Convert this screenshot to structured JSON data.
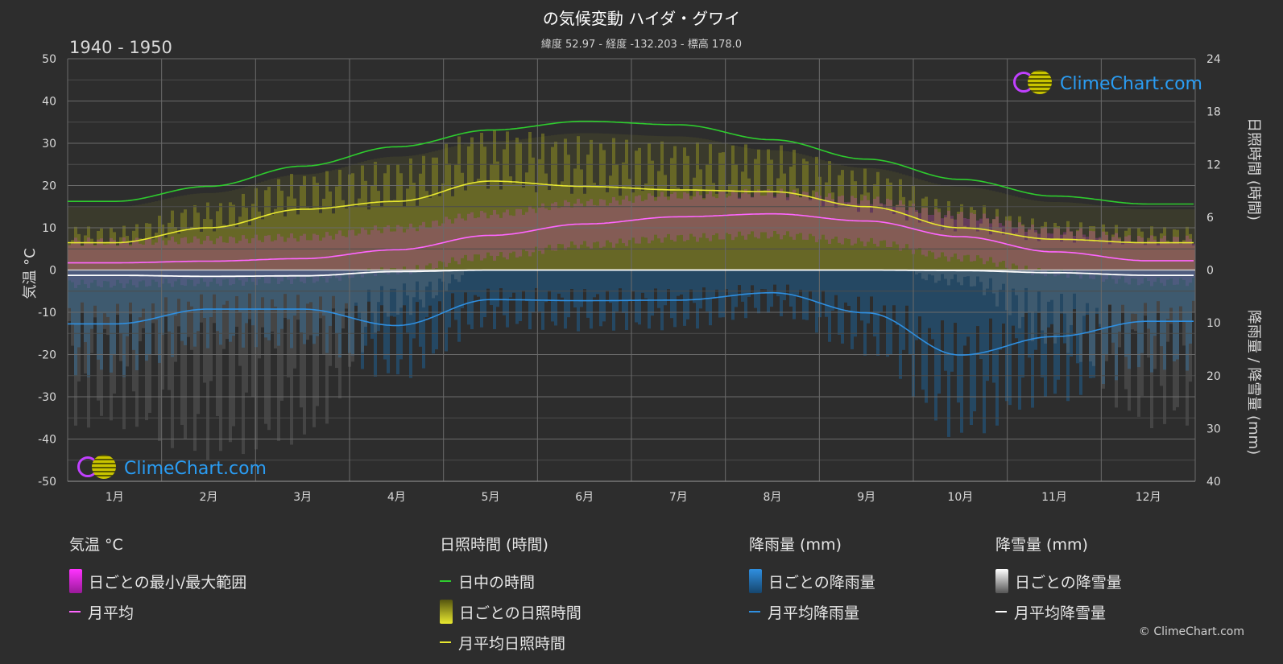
{
  "header": {
    "title": "の気候変動 ハイダ・グワイ",
    "subtitle": "緯度 52.97 - 経度 -132.203 - 標高 178.0",
    "period": "1940 - 1950"
  },
  "logo_text": "ClimeChart.com",
  "copyright": "© ClimeChart.com",
  "colors": {
    "background": "#2d2d2d",
    "daylight": "#2ecc2e",
    "sunshine": "#e8e830",
    "temp_avg": "#ff66ff",
    "rain": "#2f8fe0",
    "snow": "#ffffff",
    "brand": "#2a9df4"
  },
  "legend": {
    "temperature": {
      "title": "気温 °C",
      "range_label": "日ごとの最小/最大範囲",
      "avg_label": "月平均"
    },
    "sunshine": {
      "title": "日照時間 (時間)",
      "daylight_label": "日中の時間",
      "daily_label": "日ごとの日照時間",
      "avg_label": "月平均日照時間"
    },
    "rain": {
      "title": "降雨量 (mm)",
      "daily_label": "日ごとの降雨量",
      "avg_label": "月平均降雨量"
    },
    "snow": {
      "title": "降雪量 (mm)",
      "daily_label": "日ごとの降雪量",
      "avg_label": "月平均降雪量"
    }
  },
  "chart_data": {
    "type": "line",
    "categories": [
      "1月",
      "2月",
      "3月",
      "4月",
      "5月",
      "6月",
      "7月",
      "8月",
      "9月",
      "10月",
      "11月",
      "12月"
    ],
    "axes": {
      "left": {
        "label": "気温 °C",
        "range": [
          -50,
          50
        ],
        "ticks": [
          50,
          40,
          30,
          20,
          10,
          0,
          -10,
          -20,
          -30,
          -40,
          -50
        ]
      },
      "right_top": {
        "label": "日照時間 (時間)",
        "range": [
          0,
          24
        ],
        "ticks": [
          24,
          18,
          12,
          6,
          0
        ]
      },
      "right_bottom": {
        "label": "降雨量 / 降雪量 (mm)",
        "range": [
          0,
          40
        ],
        "ticks": [
          0,
          10,
          20,
          30,
          40
        ]
      }
    },
    "grid": true,
    "series": [
      {
        "name": "日中の時間",
        "axis": "right_top",
        "values": [
          7.8,
          9.5,
          11.8,
          14.0,
          15.9,
          16.9,
          16.5,
          14.8,
          12.6,
          10.3,
          8.4,
          7.5
        ]
      },
      {
        "name": "月平均日照時間",
        "axis": "right_top",
        "values": [
          3.1,
          4.8,
          6.9,
          7.8,
          10.1,
          9.5,
          9.1,
          8.9,
          7.2,
          4.8,
          3.5,
          3.1
        ]
      },
      {
        "name": "月平均",
        "axis": "left",
        "values": [
          1.7,
          2.1,
          2.7,
          4.8,
          8.2,
          10.9,
          12.6,
          13.3,
          11.6,
          7.9,
          4.3,
          2.2
        ]
      },
      {
        "name": "月平均降雨量",
        "axis": "right_bottom",
        "values": [
          10.2,
          7.4,
          7.4,
          10.5,
          5.6,
          5.8,
          5.7,
          4.3,
          8.1,
          16.1,
          12.6,
          9.7
        ]
      },
      {
        "name": "月平均降雪量",
        "axis": "right_bottom",
        "values": [
          1.0,
          1.2,
          1.1,
          0.3,
          0.0,
          0.0,
          0.0,
          0.0,
          0.0,
          0.1,
          0.5,
          1.0
        ]
      }
    ]
  }
}
